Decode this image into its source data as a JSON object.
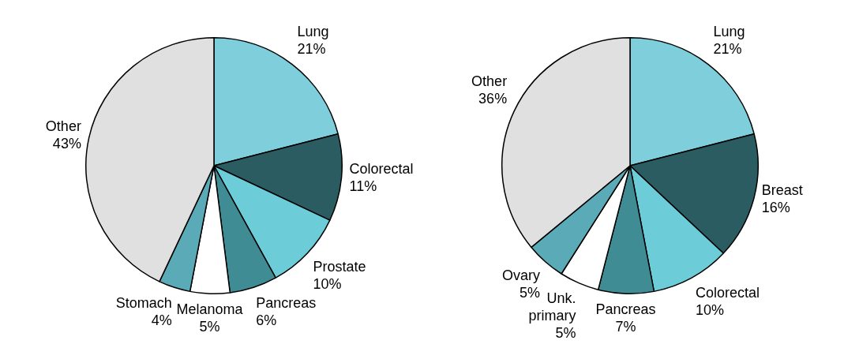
{
  "chart_data": [
    {
      "type": "pie",
      "categories": [
        "Lung",
        "Colorectal",
        "Prostate",
        "Pancreas",
        "Melanoma",
        "Stomach",
        "Other"
      ],
      "values": [
        21,
        11,
        10,
        6,
        5,
        4,
        43
      ],
      "value_labels": [
        "21%",
        "11%",
        "10%",
        "6%",
        "5%",
        "4%",
        "43%"
      ],
      "colors": [
        "#7ecfdb",
        "#2b5c62",
        "#6ccdd9",
        "#3f8c94",
        "#ffffff",
        "#5aaab8",
        "#e0e0e0"
      ],
      "legend": false
    },
    {
      "type": "pie",
      "categories": [
        "Lung",
        "Breast",
        "Colorectal",
        "Pancreas",
        "Unk. primary",
        "Ovary",
        "Other"
      ],
      "values": [
        21,
        16,
        10,
        7,
        5,
        5,
        36
      ],
      "value_labels": [
        "21%",
        "16%",
        "10%",
        "7%",
        "5%",
        "5%",
        "36%"
      ],
      "colors": [
        "#7ecfdb",
        "#2b5c62",
        "#6ccdd9",
        "#3f8c94",
        "#ffffff",
        "#5aaab8",
        "#e0e0e0"
      ],
      "legend": false
    }
  ]
}
